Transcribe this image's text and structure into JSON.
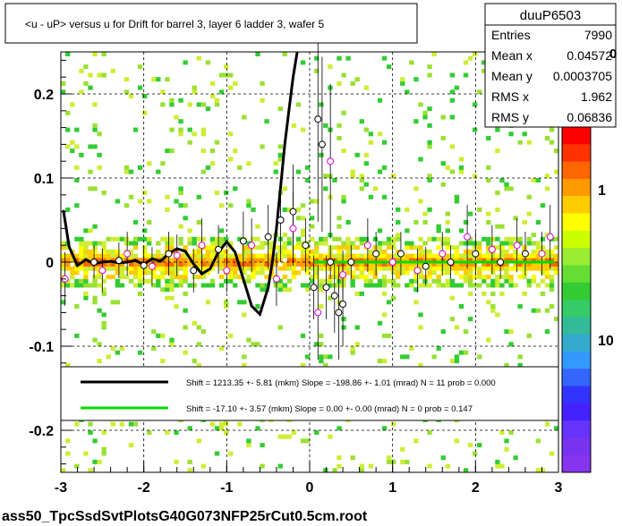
{
  "title": "<u - uP>       versus   u for Drift for barrel 3, layer 6 ladder 3, wafer 5",
  "footer": "ass50_TpcSsdSvtPlotsG40G073NFP25rCut0.5cm.root",
  "stats": {
    "name": "duuP6503",
    "rows": [
      {
        "label": "Entries",
        "value": "7990"
      },
      {
        "label": "Mean x",
        "value": "0.04572"
      },
      {
        "label": "Mean y",
        "value": "0.0003705"
      },
      {
        "label": "RMS x",
        "value": "1.962"
      },
      {
        "label": "RMS y",
        "value": "0.06836"
      }
    ]
  },
  "legend": [
    {
      "color": "#000000",
      "text": "Shift =  1213.35 +- 5.81 (mkm) Slope =  -198.86 +- 1.01 (mrad)  N = 11 prob = 0.000"
    },
    {
      "color": "#00dd00",
      "text": "Shift =   -17.10 +- 3.57 (mkm) Slope =     0.00 +- 0.00 (mrad)  N = 0 prob = 0.147"
    }
  ],
  "palette_labels": [
    "1",
    "10"
  ],
  "palette_top_partial": "0",
  "chart_data": {
    "type": "heatmap",
    "title": "<u - uP>       versus   u for Drift for barrel 3, layer 6 ladder 3, wafer 5",
    "xlim": [
      -3,
      3
    ],
    "ylim": [
      -0.25,
      0.25
    ],
    "xticks": [
      -3,
      -2,
      -1,
      0,
      1,
      2,
      3
    ],
    "xtick_labels": [
      "-3",
      "-2",
      "-1",
      "0",
      "1",
      "2",
      "3"
    ],
    "yticks": [
      -0.2,
      -0.1,
      0,
      0.1,
      0.2
    ],
    "ytick_labels": [
      "-0.2",
      "-0.1",
      "0",
      "0.1",
      "0.2"
    ],
    "grid": true,
    "color_scale": "log",
    "color_scale_labels": [
      "1",
      "10"
    ],
    "series": [
      {
        "type": "line",
        "color": "#000000",
        "x": [
          -2.97,
          -2.9,
          -2.8,
          -2.7,
          -2.6,
          -2.5,
          -2.4,
          -2.3,
          -2.2,
          -2.1,
          -2.0,
          -1.9,
          -1.8,
          -1.7,
          -1.6,
          -1.5,
          -1.4,
          -1.3,
          -1.2,
          -1.1,
          -1.0,
          -0.9,
          -0.8,
          -0.7,
          -0.6,
          -0.5,
          -0.45,
          -0.4,
          -0.35,
          -0.3,
          -0.25,
          -0.2,
          -0.15
        ],
        "y": [
          0.062,
          0.018,
          -0.004,
          0.003,
          -0.002,
          0.0,
          0.001,
          -0.001,
          0.0,
          0.002,
          -0.003,
          0.004,
          0.001,
          0.01,
          0.016,
          0.013,
          -0.002,
          -0.014,
          -0.008,
          0.012,
          0.024,
          0.012,
          -0.02,
          -0.052,
          -0.062,
          -0.03,
          0.0,
          0.04,
          0.09,
          0.14,
          0.18,
          0.22,
          0.26
        ]
      },
      {
        "type": "line",
        "color": "#00dd00",
        "x": [
          0.05,
          2.95
        ],
        "y": [
          0.0,
          0.0
        ]
      },
      {
        "type": "points",
        "marker": "open-circle-black",
        "x": [
          -2.6,
          -2.3,
          -2.0,
          -1.7,
          -1.4,
          -1.1,
          -0.8,
          -0.5,
          -0.35,
          -0.2,
          -0.05,
          0.05,
          0.1,
          0.15,
          0.2,
          0.25,
          0.3,
          0.35,
          0.4,
          0.5,
          0.8,
          1.1,
          1.4,
          1.7,
          2.0,
          2.3,
          2.6
        ],
        "y": [
          0.0,
          0.002,
          -0.004,
          0.01,
          -0.01,
          0.015,
          0.025,
          0.03,
          0.05,
          0.06,
          0.02,
          -0.03,
          0.17,
          0.14,
          -0.03,
          0.0,
          -0.04,
          -0.06,
          -0.05,
          0.0,
          0.01,
          0.01,
          -0.005,
          0.0,
          0.01,
          0.0,
          0.01
        ]
      },
      {
        "type": "points",
        "marker": "open-circle-magenta",
        "x": [
          -2.95,
          -2.5,
          -2.2,
          -1.9,
          -1.6,
          -1.3,
          -1.0,
          -0.7,
          -0.4,
          -0.2,
          0.1,
          0.25,
          0.4,
          0.7,
          1.0,
          1.3,
          1.6,
          1.9,
          2.2,
          2.5,
          2.8,
          2.9
        ],
        "y": [
          -0.02,
          -0.01,
          0.01,
          -0.005,
          0.008,
          0.02,
          -0.01,
          0.02,
          -0.02,
          0.04,
          -0.06,
          0.12,
          -0.015,
          0.02,
          0.0,
          -0.01,
          0.01,
          0.03,
          0.015,
          0.02,
          0.01,
          0.03
        ]
      }
    ]
  }
}
